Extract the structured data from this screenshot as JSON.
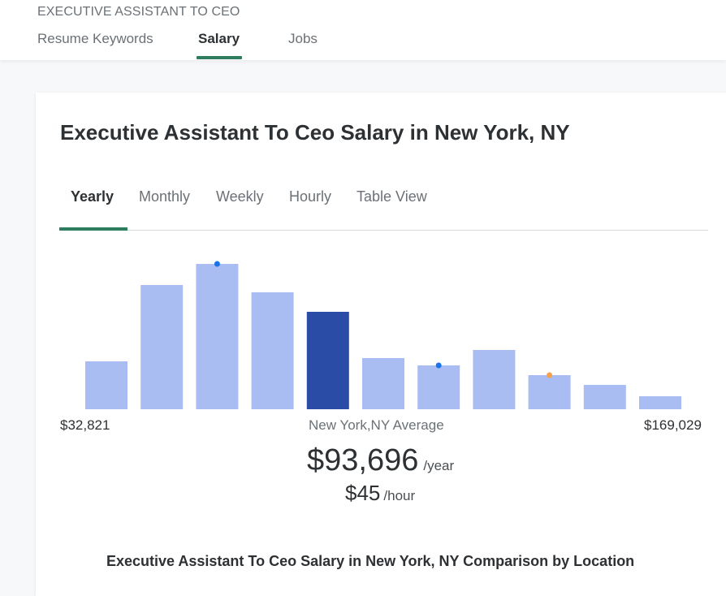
{
  "header": {
    "eyebrow": "EXECUTIVE ASSISTANT TO CEO",
    "tabs": [
      {
        "label": "Resume Keywords",
        "active": false
      },
      {
        "label": "Salary",
        "active": true
      },
      {
        "label": "Jobs",
        "active": false
      }
    ]
  },
  "card": {
    "title": "Executive Assistant To Ceo Salary in New York, NY",
    "period_tabs": [
      {
        "label": "Yearly",
        "active": true
      },
      {
        "label": "Monthly",
        "active": false
      },
      {
        "label": "Weekly",
        "active": false
      },
      {
        "label": "Hourly",
        "active": false
      },
      {
        "label": "Table View",
        "active": false
      }
    ],
    "range_min": "$32,821",
    "range_max": "$169,029",
    "average_label": "New York,NY Average",
    "average_yearly": "$93,696",
    "average_yearly_unit": "/year",
    "average_hourly": "$45",
    "average_hourly_unit": "/hour",
    "comparison_title": "Executive Assistant To Ceo Salary in New York, NY Comparison by Location"
  },
  "chart_data": {
    "type": "bar",
    "values": [
      59,
      153,
      179,
      144,
      120,
      63,
      54,
      73,
      42,
      30,
      16
    ],
    "highlight_index": 4,
    "markers": [
      {
        "bar_index": 2,
        "color": "#1a73e8"
      },
      {
        "bar_index": 6,
        "color": "#1a73e8"
      },
      {
        "bar_index": 8,
        "color": "#f5a04a"
      }
    ],
    "colors": {
      "bar": "#a9bdf3",
      "highlight": "#2a4ba6"
    },
    "ylim": [
      0,
      180
    ]
  }
}
